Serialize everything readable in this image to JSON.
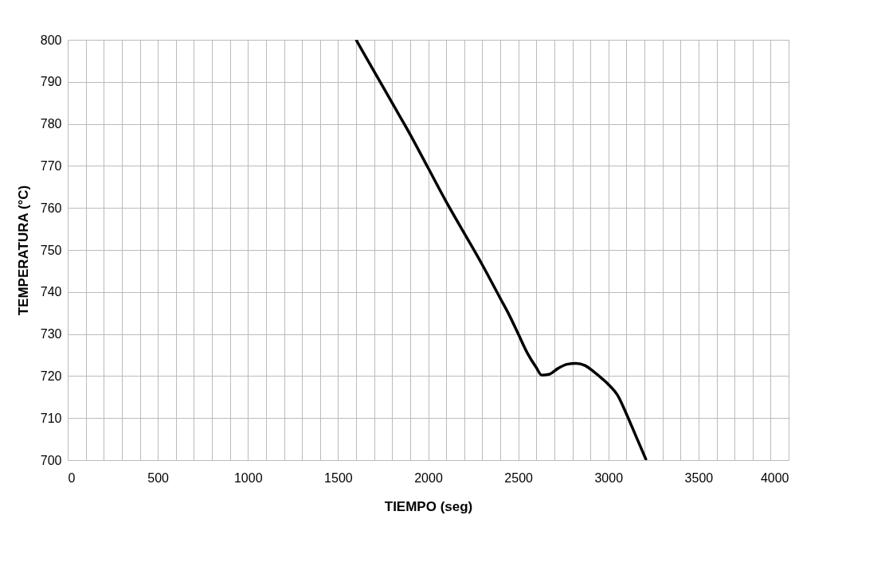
{
  "chart_data": {
    "type": "line",
    "xlabel": "TIEMPO (seg)",
    "ylabel": "TEMPERATURA (°C)",
    "x": [
      1600,
      1700,
      1800,
      1900,
      2000,
      2100,
      2200,
      2300,
      2400,
      2450,
      2500,
      2550,
      2600,
      2630,
      2670,
      2720,
      2770,
      2820,
      2870,
      2920,
      2970,
      3000,
      3050,
      3100,
      3150,
      3210
    ],
    "series": [
      {
        "color": "#000000",
        "values": [
          800,
          792.5,
          785,
          777.5,
          769.5,
          761.5,
          754,
          746.5,
          738.5,
          734.5,
          730,
          725.5,
          722,
          720.2,
          720.4,
          721.8,
          722.8,
          723,
          722.5,
          721,
          719.2,
          718,
          715.5,
          711,
          706,
          700
        ]
      }
    ],
    "xlim": [
      0,
      4000
    ],
    "ylim": [
      700,
      800
    ],
    "xticks": [
      0,
      {
        "value": 100,
        "label": null
      },
      {
        "value": 200,
        "label": null
      },
      {
        "value": 300,
        "label": null
      },
      {
        "value": 400,
        "label": null
      },
      500,
      {
        "value": 600,
        "label": null
      },
      {
        "value": 700,
        "label": null
      },
      {
        "value": 800,
        "label": null
      },
      {
        "value": 900,
        "label": null
      },
      1000,
      {
        "value": 1100,
        "label": null
      },
      {
        "value": 1200,
        "label": null
      },
      {
        "value": 1300,
        "label": null
      },
      {
        "value": 1400,
        "label": null
      },
      1500,
      {
        "value": 1600,
        "label": null
      },
      {
        "value": 1700,
        "label": null
      },
      {
        "value": 1800,
        "label": null
      },
      {
        "value": 1900,
        "label": null
      },
      2000,
      {
        "value": 2100,
        "label": null
      },
      {
        "value": 2200,
        "label": null
      },
      {
        "value": 2300,
        "label": null
      },
      {
        "value": 2400,
        "label": null
      },
      2500,
      {
        "value": 2600,
        "label": null
      },
      {
        "value": 2700,
        "label": null
      },
      {
        "value": 2800,
        "label": null
      },
      {
        "value": 2900,
        "label": null
      },
      3000,
      {
        "value": 3100,
        "label": null
      },
      {
        "value": 3200,
        "label": null
      },
      {
        "value": 3300,
        "label": null
      },
      {
        "value": 3400,
        "label": null
      },
      3500,
      {
        "value": 3600,
        "label": null
      },
      {
        "value": 3700,
        "label": null
      },
      {
        "value": 3800,
        "label": null
      },
      {
        "value": 3900,
        "label": null
      },
      4000
    ],
    "yticks": [
      700,
      710,
      720,
      730,
      740,
      750,
      760,
      770,
      780,
      790,
      800
    ],
    "grid": true,
    "marker": "none",
    "line_style": "solid"
  }
}
